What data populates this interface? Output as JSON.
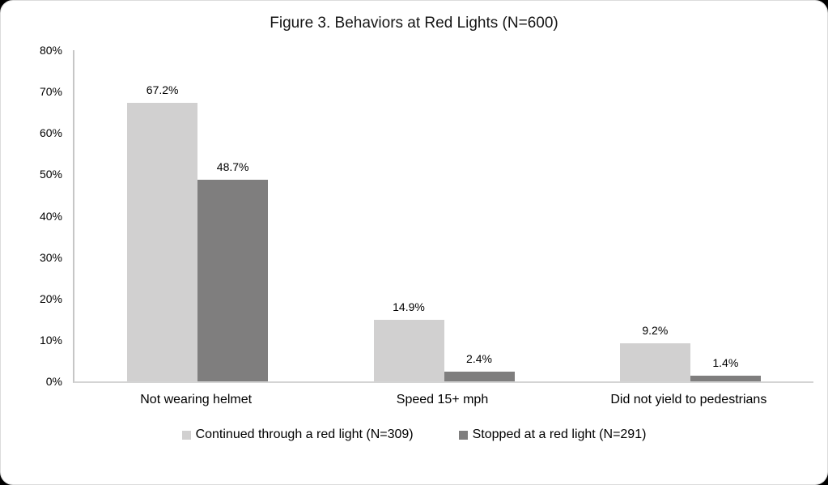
{
  "chart_data": {
    "type": "bar",
    "title": "Figure 3. Behaviors at Red Lights (N=600)",
    "categories": [
      "Not wearing helmet",
      "Speed 15+ mph",
      "Did not yield to pedestrians"
    ],
    "series": [
      {
        "name": "Continued through a red light (N=309)",
        "values": [
          67.2,
          14.9,
          9.2
        ],
        "labels": [
          "67.2%",
          "14.9%",
          "9.2%"
        ],
        "color": "#d1d0d0"
      },
      {
        "name": "Stopped at a red light (N=291)",
        "values": [
          48.7,
          2.4,
          1.4
        ],
        "labels": [
          "48.7%",
          "2.4%",
          "1.4%"
        ],
        "color": "#7f7e7e"
      }
    ],
    "ylim": [
      0,
      80
    ],
    "y_ticks": [
      "0%",
      "10%",
      "20%",
      "30%",
      "40%",
      "50%",
      "60%",
      "70%",
      "80%"
    ],
    "grid": false,
    "legend_position": "bottom",
    "colors": {
      "axis": "#c6c6c6",
      "baseline": "#d4d4d4",
      "text": "#000000",
      "background": "#ffffff"
    }
  }
}
